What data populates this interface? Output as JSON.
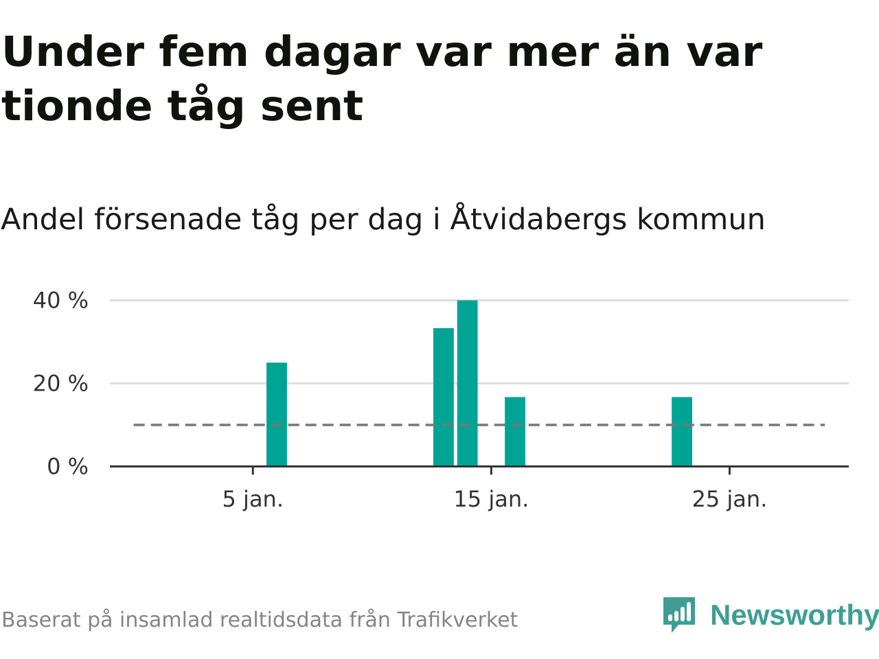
{
  "title": "Under fem dagar var mer än var tionde tåg sent",
  "subtitle": "Andel försenade tåg per dag i Åtvidabergs kommun",
  "source": "Baserat på insamlad realtidsdata från Trafikverket",
  "brand": {
    "name": "Newsworthy",
    "color": "#3e9e94"
  },
  "colors": {
    "bar": "#00a495",
    "reference_line": "#777777",
    "grid": "#dddddd",
    "axis": "#333333"
  },
  "chart_data": {
    "type": "bar",
    "x_unit": "day of January",
    "x_range": [
      -1,
      30
    ],
    "y_range": [
      0,
      40
    ],
    "y_ticks": [
      {
        "value": 0,
        "label": "0 %"
      },
      {
        "value": 20,
        "label": "20 %"
      },
      {
        "value": 40,
        "label": "40 %"
      }
    ],
    "x_ticks": [
      {
        "value": 5,
        "label": "5 jan."
      },
      {
        "value": 15,
        "label": "15 jan."
      },
      {
        "value": 25,
        "label": "25 jan."
      }
    ],
    "reference_line": {
      "value": 10,
      "x_from": 0,
      "x_to": 29,
      "style": "dashed"
    },
    "bars": [
      {
        "day": 6,
        "value": 25
      },
      {
        "day": 13,
        "value": 33.3
      },
      {
        "day": 14,
        "value": 40
      },
      {
        "day": 16,
        "value": 16.7
      },
      {
        "day": 23,
        "value": 16.7
      }
    ],
    "grid": true,
    "legend": false
  }
}
